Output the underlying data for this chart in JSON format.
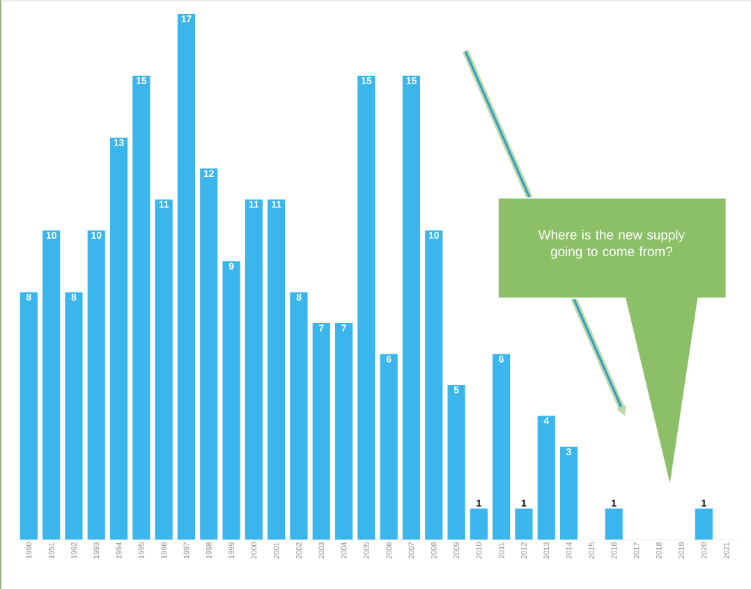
{
  "chart_data": {
    "type": "bar",
    "categories": [
      "1990",
      "1991",
      "1992",
      "1993",
      "1994",
      "1995",
      "1996",
      "1997",
      "1998",
      "1999",
      "2000",
      "2001",
      "2002",
      "2003",
      "2004",
      "2005",
      "2006",
      "2007",
      "2008",
      "2009",
      "2010",
      "2011",
      "2012",
      "2013",
      "2014",
      "2015",
      "2016",
      "2017",
      "2018",
      "2019",
      "2020",
      "2021"
    ],
    "values": [
      8,
      10,
      8,
      10,
      13,
      15,
      11,
      17,
      12,
      9,
      11,
      11,
      8,
      7,
      7,
      15,
      6,
      15,
      10,
      5,
      1,
      6,
      1,
      4,
      3,
      null,
      1,
      null,
      null,
      null,
      1,
      null
    ],
    "color": "#3bb6ec",
    "data_labels": true,
    "annotations": [
      "Where is the new supply going to come from?"
    ]
  }
}
